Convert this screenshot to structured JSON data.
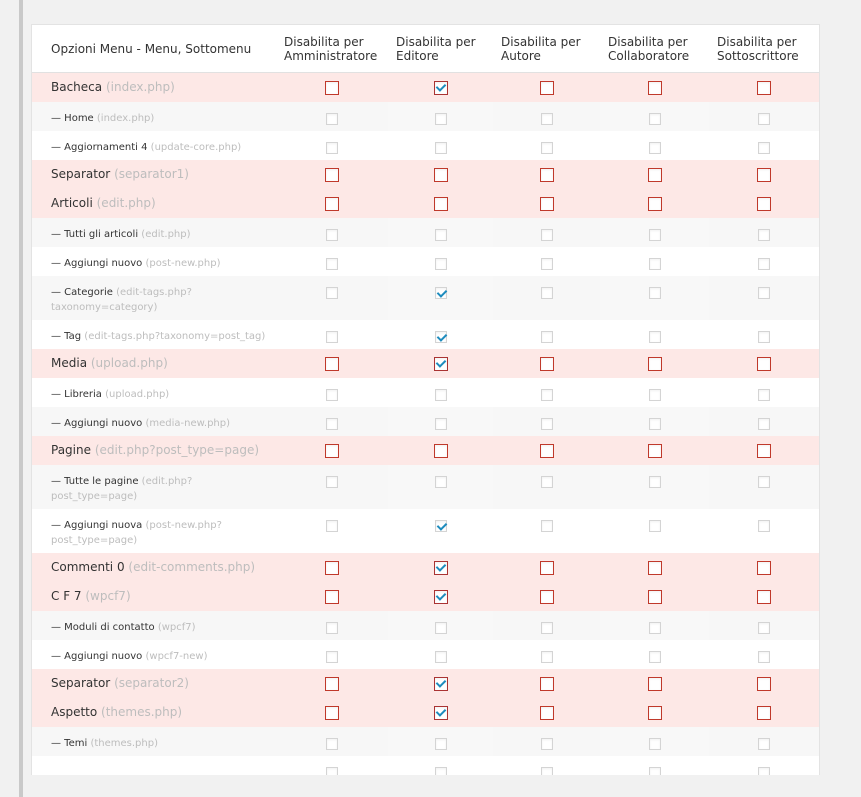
{
  "headers": [
    "Opzioni Menu - Menu, Sottomenu",
    "Disabilita per Amministratore",
    "Disabilita per Editore",
    "Disabilita per Autore",
    "Disabilita per Collaboratore",
    "Disabilita per Sottoscrittore"
  ],
  "rows": [
    {
      "type": "parent",
      "name": "Bacheca",
      "slug": "(index.php)",
      "checks": [
        false,
        true,
        false,
        false,
        false
      ]
    },
    {
      "type": "child",
      "name": "— Home",
      "slug": "(index.php)",
      "checks": [
        false,
        false,
        false,
        false,
        false
      ]
    },
    {
      "type": "child",
      "name": "— Aggiornamenti 4",
      "slug": "(update-core.php)",
      "checks": [
        false,
        false,
        false,
        false,
        false
      ]
    },
    {
      "type": "parent",
      "name": "Separator",
      "slug": "(separator1)",
      "checks": [
        false,
        false,
        false,
        false,
        false
      ]
    },
    {
      "type": "parent",
      "name": "Articoli",
      "slug": "(edit.php)",
      "checks": [
        false,
        false,
        false,
        false,
        false
      ]
    },
    {
      "type": "child",
      "name": "— Tutti gli articoli",
      "slug": "(edit.php)",
      "checks": [
        false,
        false,
        false,
        false,
        false
      ]
    },
    {
      "type": "child",
      "name": "— Aggiungi nuovo",
      "slug": "(post-new.php)",
      "checks": [
        false,
        false,
        false,
        false,
        false
      ]
    },
    {
      "type": "child",
      "name": "— Categorie",
      "slug": "(edit-tags.php?taxonomy=category)",
      "checks": [
        false,
        true,
        false,
        false,
        false
      ],
      "tall": true
    },
    {
      "type": "child",
      "name": "— Tag",
      "slug": "(edit-tags.php?taxonomy=post_tag)",
      "checks": [
        false,
        true,
        false,
        false,
        false
      ]
    },
    {
      "type": "parent",
      "name": "Media",
      "slug": "(upload.php)",
      "checks": [
        false,
        true,
        false,
        false,
        false
      ]
    },
    {
      "type": "child",
      "name": "— Libreria",
      "slug": "(upload.php)",
      "checks": [
        false,
        false,
        false,
        false,
        false
      ]
    },
    {
      "type": "child",
      "name": "— Aggiungi nuovo",
      "slug": "(media-new.php)",
      "checks": [
        false,
        false,
        false,
        false,
        false
      ]
    },
    {
      "type": "parent",
      "name": "Pagine",
      "slug": "(edit.php?post_type=page)",
      "checks": [
        false,
        false,
        false,
        false,
        false
      ]
    },
    {
      "type": "child",
      "name": "— Tutte le pagine",
      "slug": "(edit.php?post_type=page)",
      "checks": [
        false,
        false,
        false,
        false,
        false
      ],
      "tall": true
    },
    {
      "type": "child",
      "name": "— Aggiungi nuova",
      "slug": "(post-new.php?post_type=page)",
      "checks": [
        false,
        true,
        false,
        false,
        false
      ],
      "tall": true
    },
    {
      "type": "parent",
      "name": "Commenti 0",
      "slug": "(edit-comments.php)",
      "checks": [
        false,
        true,
        false,
        false,
        false
      ]
    },
    {
      "type": "parent",
      "name": "C F 7",
      "slug": "(wpcf7)",
      "checks": [
        false,
        true,
        false,
        false,
        false
      ]
    },
    {
      "type": "child",
      "name": "— Moduli di contatto",
      "slug": "(wpcf7)",
      "checks": [
        false,
        false,
        false,
        false,
        false
      ]
    },
    {
      "type": "child",
      "name": "— Aggiungi nuovo",
      "slug": "(wpcf7-new)",
      "checks": [
        false,
        false,
        false,
        false,
        false
      ]
    },
    {
      "type": "parent",
      "name": "Separator",
      "slug": "(separator2)",
      "checks": [
        false,
        true,
        false,
        false,
        false
      ]
    },
    {
      "type": "parent",
      "name": "Aspetto",
      "slug": "(themes.php)",
      "checks": [
        false,
        true,
        false,
        false,
        false
      ]
    },
    {
      "type": "child",
      "name": "— Temi",
      "slug": "(themes.php)",
      "checks": [
        false,
        false,
        false,
        false,
        false
      ]
    },
    {
      "type": "child",
      "name": "",
      "slug": "",
      "checks": [
        false,
        false,
        false,
        false,
        false
      ]
    }
  ]
}
